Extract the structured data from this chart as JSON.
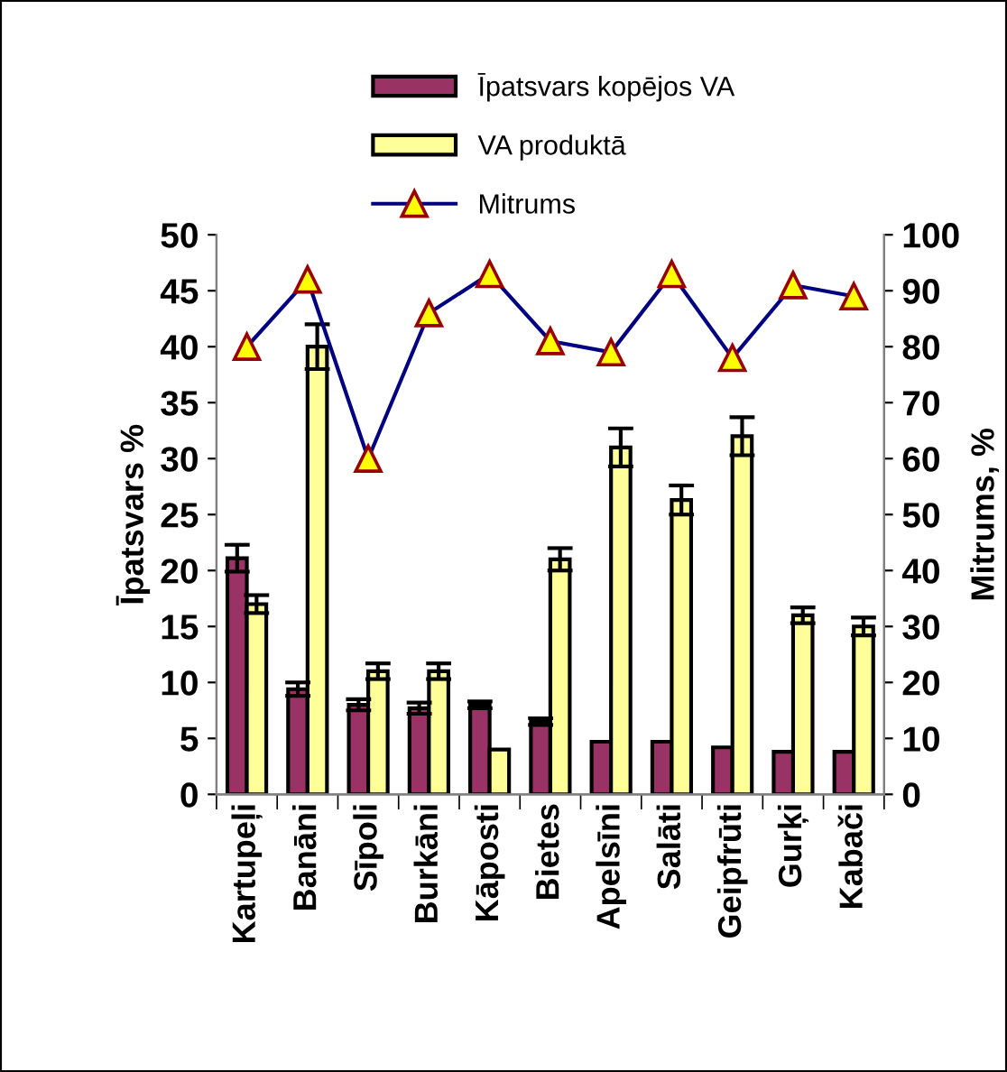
{
  "chart_data": {
    "type": "bar",
    "categories": [
      "Kartupeļi",
      "Banāni",
      "Sīpoli",
      "Burkāni",
      "Kāposti",
      "Bietes",
      "Apelsīni",
      "Salāti",
      "Geipfrūti",
      "Gurķi",
      "Kabači"
    ],
    "series": [
      {
        "name": "Īpatsvars kopējos VA",
        "color": "#993366",
        "values": [
          21.1,
          9.4,
          8,
          7.7,
          8,
          6.5,
          4.7,
          4.7,
          4.2,
          3.8,
          3.8
        ],
        "errors": [
          1.2,
          0.6,
          0.5,
          0.5,
          0.3,
          0.3,
          null,
          null,
          null,
          null,
          null
        ]
      },
      {
        "name": "VA produktā",
        "color": "#ffff99",
        "values": [
          17,
          40,
          11,
          11,
          4,
          21,
          31,
          26.3,
          32,
          16,
          15
        ],
        "errors": [
          0.8,
          2,
          0.7,
          0.7,
          null,
          1,
          1.7,
          1.3,
          1.7,
          0.7,
          0.8
        ]
      },
      {
        "name": "Mitrums",
        "type": "line",
        "axis": "y2",
        "color": "#000080",
        "marker": "triangle",
        "values": [
          80,
          92,
          60,
          86,
          93,
          81,
          79,
          93,
          78,
          91,
          89
        ]
      }
    ],
    "ylabel": "Īpatsvars %",
    "y2label": "Mitrums, %",
    "ylim": [
      0,
      50
    ],
    "yticks": [
      0,
      5,
      10,
      15,
      20,
      25,
      30,
      35,
      40,
      45,
      50
    ],
    "y2lim": [
      0,
      100
    ],
    "y2ticks": [
      0,
      10,
      20,
      30,
      40,
      50,
      60,
      70,
      80,
      90,
      100
    ],
    "legend": "top",
    "grid": false
  }
}
